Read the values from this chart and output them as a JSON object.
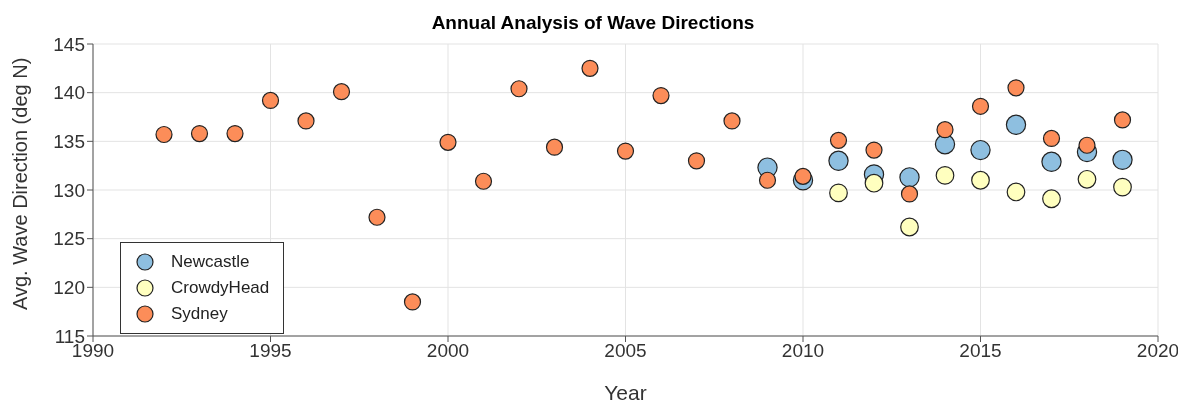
{
  "chart_data": {
    "type": "scatter",
    "title": "Annual Analysis of Wave Directions",
    "xlabel": "Year",
    "ylabel": "Avg. Wave Direction (deg N)",
    "xlim": [
      1990,
      2020
    ],
    "xticks": [
      1990,
      1995,
      2000,
      2005,
      2010,
      2015,
      2020
    ],
    "ylim": [
      115,
      145
    ],
    "yticks": [
      115,
      120,
      125,
      130,
      135,
      140,
      145
    ],
    "grid": true,
    "legend": "bottom left",
    "marker": "circle",
    "series": [
      {
        "name": "Newcastle",
        "color": "#8ebfe0",
        "x": [
          2009,
          2010,
          2011,
          2012,
          2013,
          2014,
          2015,
          2016,
          2017,
          2018,
          2019
        ],
        "values": [
          132.3,
          131.0,
          133.0,
          131.6,
          131.3,
          134.7,
          134.1,
          136.7,
          132.9,
          133.9,
          133.1
        ]
      },
      {
        "name": "CrowdyHead",
        "color": "#ffffbf",
        "x": [
          2011,
          2012,
          2013,
          2014,
          2015,
          2016,
          2017,
          2018,
          2019
        ],
        "values": [
          129.7,
          130.7,
          126.2,
          131.5,
          131.0,
          129.8,
          129.1,
          131.1,
          130.3
        ]
      },
      {
        "name": "Sydney",
        "color": "#fc8d59",
        "x": [
          1992,
          1993,
          1994,
          1995,
          1996,
          1997,
          1998,
          1999,
          2000,
          2001,
          2002,
          2003,
          2004,
          2005,
          2006,
          2007,
          2008,
          2009,
          2010,
          2011,
          2012,
          2013,
          2014,
          2015,
          2016,
          2017,
          2018,
          2019
        ],
        "values": [
          135.7,
          135.8,
          135.8,
          139.2,
          137.1,
          140.1,
          127.2,
          118.5,
          134.9,
          130.9,
          140.4,
          134.4,
          142.5,
          134.0,
          139.7,
          133.0,
          137.1,
          131.0,
          131.4,
          135.1,
          134.1,
          129.6,
          136.2,
          138.6,
          140.5,
          135.3,
          134.6,
          137.2
        ]
      }
    ]
  }
}
